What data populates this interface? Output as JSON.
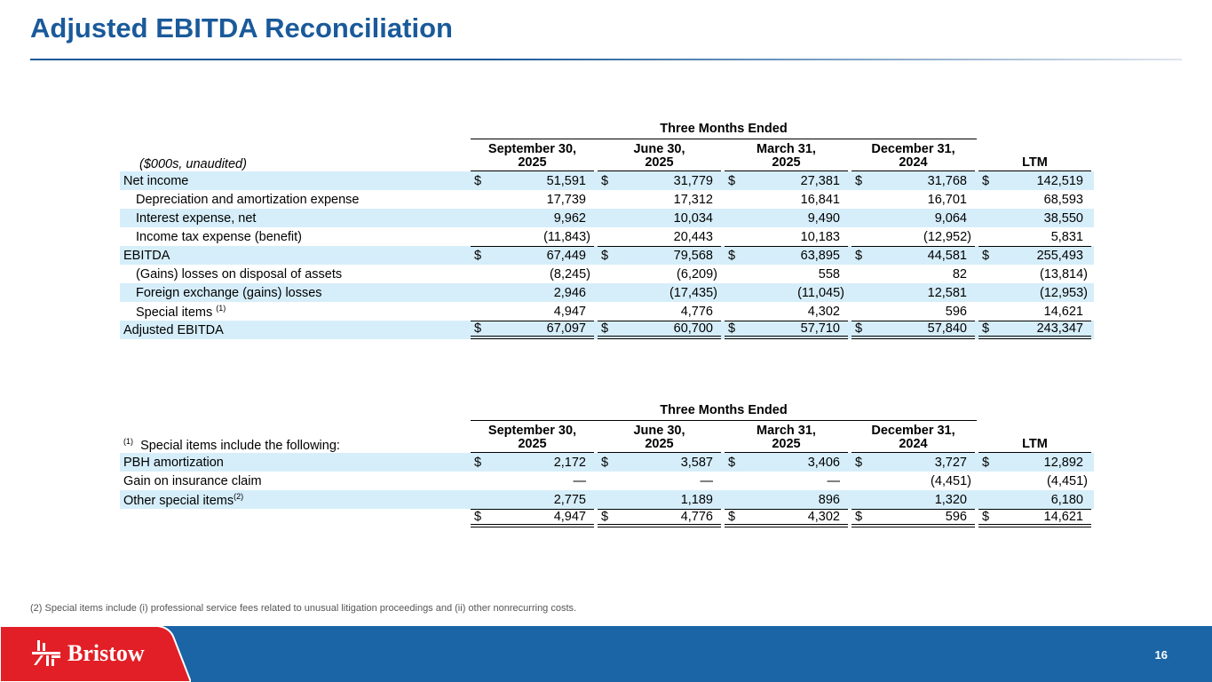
{
  "title": "Adjusted EBITDA Reconciliation",
  "table1": {
    "group_header": "Three Months Ended",
    "unit_label": "($000s, unaudited)",
    "columns": [
      [
        "September 30,",
        "2025"
      ],
      [
        "June 30,",
        "2025"
      ],
      [
        "March 31,",
        "2025"
      ],
      [
        "December 31,",
        "2024"
      ],
      [
        "",
        "LTM"
      ]
    ],
    "rows": [
      {
        "label": "Net income",
        "indent": false,
        "dollar": true,
        "shade": true,
        "values": [
          "51,591",
          "31,779",
          "27,381",
          "31,768",
          "142,519"
        ]
      },
      {
        "label": "Depreciation and amortization expense",
        "indent": true,
        "values": [
          "17,739",
          "17,312",
          "16,841",
          "16,701",
          "68,593"
        ]
      },
      {
        "label": "Interest expense, net",
        "indent": true,
        "shade": true,
        "values": [
          "9,962",
          "10,034",
          "9,490",
          "9,064",
          "38,550"
        ]
      },
      {
        "label": "Income tax expense (benefit)",
        "indent": true,
        "values": [
          "(11,843)",
          "20,443",
          "10,183",
          "(12,952)",
          "5,831"
        ]
      },
      {
        "label": "EBITDA",
        "dollar": true,
        "shade": true,
        "top": true,
        "values": [
          "67,449",
          "79,568",
          "63,895",
          "44,581",
          "255,493"
        ]
      },
      {
        "label": "(Gains) losses on disposal of assets",
        "indent": true,
        "values": [
          "(8,245)",
          "(6,209)",
          "558",
          "82",
          "(13,814)"
        ]
      },
      {
        "label": "Foreign exchange (gains) losses",
        "indent": true,
        "shade": true,
        "values": [
          "2,946",
          "(17,435)",
          "(11,045)",
          "12,581",
          "(12,953)"
        ]
      },
      {
        "label": "Special items",
        "sup": "(1)",
        "indent": true,
        "values": [
          "4,947",
          "4,776",
          "4,302",
          "596",
          "14,621"
        ]
      },
      {
        "label": "Adjusted EBITDA",
        "dollar": true,
        "shade": true,
        "top": true,
        "dbl": true,
        "values": [
          "67,097",
          "60,700",
          "57,710",
          "57,840",
          "243,347"
        ]
      }
    ]
  },
  "table2": {
    "group_header": "Three Months Ended",
    "unit_label_sup": "(1)",
    "unit_label": "Special items include the following:",
    "columns": [
      [
        "September 30,",
        "2025"
      ],
      [
        "June 30,",
        "2025"
      ],
      [
        "March 31,",
        "2025"
      ],
      [
        "December 31,",
        "2024"
      ],
      [
        "",
        "LTM"
      ]
    ],
    "rows": [
      {
        "label": "PBH amortization",
        "dollar": true,
        "shade": true,
        "values": [
          "2,172",
          "3,587",
          "3,406",
          "3,727",
          "12,892"
        ]
      },
      {
        "label": "Gain on insurance claim",
        "values": [
          "—",
          "—",
          "—",
          "(4,451)",
          "(4,451)"
        ]
      },
      {
        "label": "Other special items",
        "supinline": "(2)",
        "shade": true,
        "values": [
          "2,775",
          "1,189",
          "896",
          "1,320",
          "6,180"
        ]
      },
      {
        "label": "",
        "dollar": true,
        "top": true,
        "dbl": true,
        "values": [
          "4,947",
          "4,776",
          "4,302",
          "596",
          "14,621"
        ]
      }
    ]
  },
  "footnote": "(2) Special items include (i) professional service fees related to unusual litigation proceedings and (ii) other nonrecurring costs.",
  "page_number": "16",
  "logo_text": "Bristow",
  "colors": {
    "title": "#1a5a9a",
    "row_shade": "#d6eefa",
    "footer_blue": "#1b64a5",
    "footer_red": "#e21f26"
  }
}
